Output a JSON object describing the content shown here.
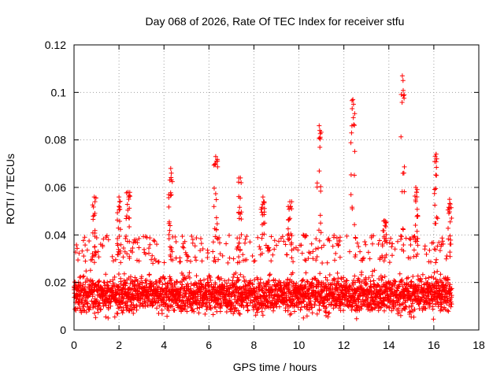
{
  "chart_data": {
    "type": "scatter",
    "title": "Day 068 of 2026, Rate Of TEC Index for receiver stfu",
    "xlabel": "GPS time / hours",
    "ylabel": "ROTI / TECUs",
    "xlim": [
      0,
      18
    ],
    "ylim": [
      0,
      0.12
    ],
    "xticks": [
      0,
      2,
      4,
      6,
      8,
      10,
      12,
      14,
      16,
      18
    ],
    "yticks": [
      0,
      0.02,
      0.04,
      0.06,
      0.08,
      0.1,
      0.12
    ],
    "xtick_labels": [
      "0",
      "2",
      "4",
      "6",
      "8",
      "10",
      "12",
      "14",
      "16",
      "18"
    ],
    "ytick_labels": [
      "0",
      "0.02",
      "0.04",
      "0.06",
      "0.08",
      "0.1",
      "0.12"
    ],
    "grid": true,
    "marker": "+",
    "color": "#ff0000",
    "data_extent_hours": [
      0,
      16.8
    ],
    "bulk_range": [
      0.003,
      0.03
    ],
    "baseline_mean": 0.015,
    "outlier_peaks": [
      {
        "x": 0.9,
        "y": 0.056
      },
      {
        "x": 2.0,
        "y": 0.056
      },
      {
        "x": 2.4,
        "y": 0.058
      },
      {
        "x": 4.3,
        "y": 0.068
      },
      {
        "x": 6.3,
        "y": 0.073
      },
      {
        "x": 7.4,
        "y": 0.064
      },
      {
        "x": 8.4,
        "y": 0.056
      },
      {
        "x": 9.6,
        "y": 0.054
      },
      {
        "x": 10.9,
        "y": 0.086
      },
      {
        "x": 12.4,
        "y": 0.097
      },
      {
        "x": 13.8,
        "y": 0.046
      },
      {
        "x": 14.6,
        "y": 0.107
      },
      {
        "x": 15.2,
        "y": 0.06
      },
      {
        "x": 16.1,
        "y": 0.074
      },
      {
        "x": 16.7,
        "y": 0.055
      }
    ]
  }
}
